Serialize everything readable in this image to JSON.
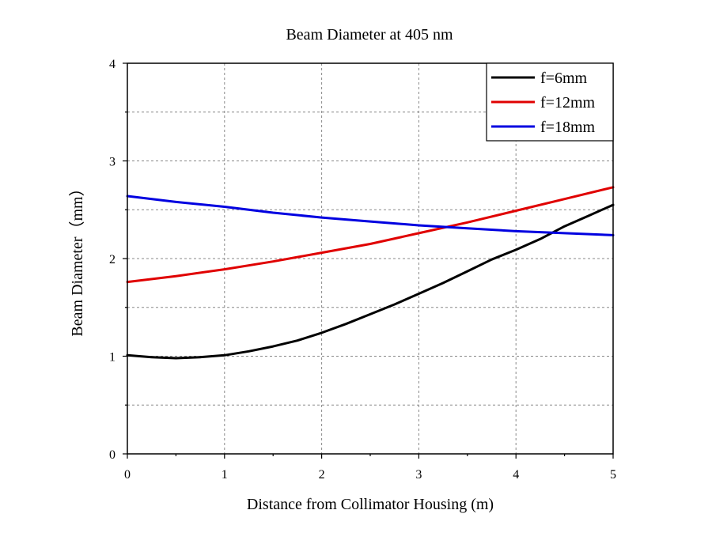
{
  "chart_data": {
    "type": "line",
    "title": "Beam Diameter at 405 nm",
    "xlabel": "Distance from Collimator Housing (m)",
    "ylabel": "Beam Diameter（mm）",
    "xlim": [
      0,
      5
    ],
    "ylim": [
      0,
      4
    ],
    "xticks": [
      "0",
      "1",
      "2",
      "3",
      "4",
      "5"
    ],
    "yticks": [
      "0",
      "1",
      "2",
      "3",
      "4"
    ],
    "grid": true,
    "legend_position": "top-right",
    "series": [
      {
        "name": "f=6mm",
        "color": "#000000",
        "x": [
          0,
          0.25,
          0.5,
          0.75,
          1.0,
          1.25,
          1.5,
          1.75,
          2.0,
          2.25,
          2.5,
          2.75,
          3.0,
          3.25,
          3.5,
          3.75,
          4.0,
          4.25,
          4.5,
          4.75,
          5.0
        ],
        "y": [
          1.01,
          0.99,
          0.98,
          0.99,
          1.01,
          1.05,
          1.1,
          1.16,
          1.24,
          1.33,
          1.43,
          1.53,
          1.64,
          1.75,
          1.87,
          1.99,
          2.09,
          2.2,
          2.33,
          2.44,
          2.55
        ]
      },
      {
        "name": "f=12mm",
        "color": "#e00000",
        "x": [
          0,
          0.5,
          1.0,
          1.5,
          2.0,
          2.5,
          3.0,
          3.5,
          4.0,
          4.5,
          5.0
        ],
        "y": [
          1.76,
          1.82,
          1.89,
          1.97,
          2.06,
          2.15,
          2.26,
          2.37,
          2.49,
          2.61,
          2.73
        ]
      },
      {
        "name": "f=18mm",
        "color": "#0000e0",
        "x": [
          0,
          0.5,
          1.0,
          1.5,
          2.0,
          2.5,
          3.0,
          3.5,
          4.0,
          4.5,
          5.0
        ],
        "y": [
          2.64,
          2.58,
          2.53,
          2.47,
          2.42,
          2.38,
          2.34,
          2.31,
          2.28,
          2.26,
          2.24
        ]
      }
    ]
  }
}
